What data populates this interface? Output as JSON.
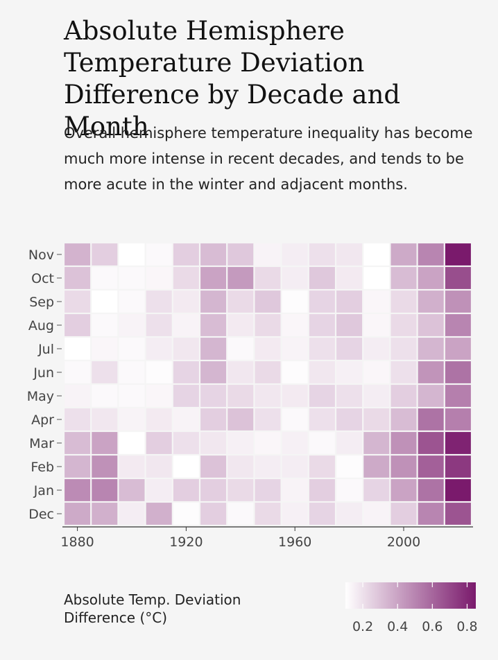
{
  "title": "Absolute Hemisphere Temperature Deviation Difference by Decade and Month",
  "subtitle": "Overall hemisphere temperature inequality has become much more intense in recent decades, and tends to be more acute in the winter and adjacent months.",
  "legend_title": "Absolute Temp. Deviation Difference (°C)",
  "colors": {
    "low": "#ffffff",
    "high": "#7a1a6c",
    "background": "#f5f5f5",
    "cell_border": "#ffffff"
  },
  "chart_data": {
    "type": "heatmap",
    "title": "Absolute Hemisphere Temperature Deviation Difference by Decade and Month",
    "xlabel": "",
    "ylabel": "",
    "x_decades": [
      1880,
      1890,
      1900,
      1910,
      1920,
      1930,
      1940,
      1950,
      1960,
      1970,
      1980,
      1990,
      2000,
      2010,
      2020
    ],
    "x_ticks": [
      1880,
      1920,
      1960,
      2000
    ],
    "y_months": [
      "Dec",
      "Jan",
      "Feb",
      "Mar",
      "Apr",
      "May",
      "Jun",
      "Jul",
      "Aug",
      "Sep",
      "Oct",
      "Nov"
    ],
    "value_range": [
      0.1,
      0.85
    ],
    "legend_ticks": [
      0.2,
      0.4,
      0.6,
      0.8
    ],
    "values": {
      "Nov": [
        0.35,
        0.26,
        0.1,
        0.12,
        0.26,
        0.32,
        0.28,
        0.14,
        0.16,
        0.2,
        0.18,
        0.1,
        0.38,
        0.5,
        0.85
      ],
      "Oct": [
        0.3,
        0.12,
        0.12,
        0.13,
        0.22,
        0.4,
        0.43,
        0.22,
        0.16,
        0.28,
        0.17,
        0.1,
        0.32,
        0.4,
        0.68
      ],
      "Sep": [
        0.22,
        0.1,
        0.12,
        0.2,
        0.17,
        0.34,
        0.22,
        0.28,
        0.11,
        0.24,
        0.26,
        0.13,
        0.22,
        0.36,
        0.46
      ],
      "Aug": [
        0.26,
        0.12,
        0.14,
        0.2,
        0.14,
        0.32,
        0.17,
        0.22,
        0.13,
        0.24,
        0.28,
        0.13,
        0.22,
        0.3,
        0.5
      ],
      "Jul": [
        0.1,
        0.13,
        0.12,
        0.16,
        0.18,
        0.34,
        0.12,
        0.17,
        0.14,
        0.2,
        0.24,
        0.16,
        0.2,
        0.34,
        0.4
      ],
      "Jun": [
        0.12,
        0.2,
        0.12,
        0.11,
        0.24,
        0.34,
        0.18,
        0.22,
        0.11,
        0.18,
        0.15,
        0.13,
        0.2,
        0.45,
        0.56
      ],
      "May": [
        0.14,
        0.12,
        0.12,
        0.13,
        0.24,
        0.24,
        0.22,
        0.18,
        0.17,
        0.24,
        0.2,
        0.16,
        0.26,
        0.34,
        0.52
      ],
      "Apr": [
        0.2,
        0.18,
        0.14,
        0.17,
        0.14,
        0.26,
        0.3,
        0.2,
        0.12,
        0.2,
        0.24,
        0.22,
        0.32,
        0.56,
        0.52
      ],
      "Mar": [
        0.32,
        0.4,
        0.1,
        0.26,
        0.2,
        0.18,
        0.15,
        0.13,
        0.15,
        0.12,
        0.16,
        0.34,
        0.46,
        0.66,
        0.82
      ],
      "Feb": [
        0.34,
        0.46,
        0.17,
        0.18,
        0.1,
        0.3,
        0.18,
        0.16,
        0.16,
        0.22,
        0.11,
        0.38,
        0.46,
        0.62,
        0.75
      ],
      "Jan": [
        0.48,
        0.5,
        0.32,
        0.16,
        0.26,
        0.26,
        0.22,
        0.24,
        0.14,
        0.26,
        0.12,
        0.24,
        0.4,
        0.56,
        0.85
      ],
      "Dec": [
        0.38,
        0.36,
        0.16,
        0.36,
        0.11,
        0.26,
        0.12,
        0.22,
        0.15,
        0.24,
        0.16,
        0.14,
        0.26,
        0.5,
        0.66
      ]
    }
  }
}
